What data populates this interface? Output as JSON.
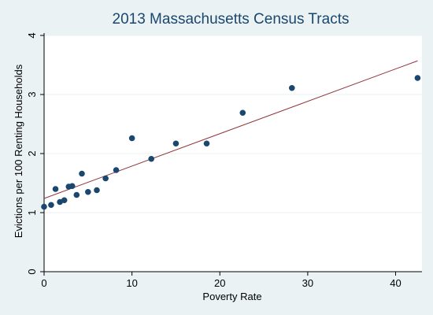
{
  "chart_data": {
    "type": "scatter",
    "title": "2013 Massachusetts Census Tracts",
    "xlabel": "Poverty Rate",
    "ylabel": "Evictions per 100 Renting Households",
    "xlim": [
      0,
      43
    ],
    "ylim": [
      0,
      4
    ],
    "x_ticks": [
      0,
      10,
      20,
      30,
      40
    ],
    "y_ticks": [
      0,
      1,
      2,
      3,
      4
    ],
    "x_tick_labels": [
      "0",
      "10",
      "20",
      "30",
      "40"
    ],
    "y_tick_labels": [
      "0",
      "1",
      "2",
      "3",
      "4"
    ],
    "grid": "horizontal",
    "colors": {
      "background": "#eaf2f3",
      "plot_area": "#ffffff",
      "marker": "#1a476f",
      "fit_line": "#90353b",
      "title": "#1a476f",
      "grid": "#eaf2f3"
    },
    "series": [
      {
        "type": "scatter",
        "points": [
          {
            "x": 0.0,
            "y": 1.1
          },
          {
            "x": 0.8,
            "y": 1.13
          },
          {
            "x": 1.3,
            "y": 1.4
          },
          {
            "x": 1.8,
            "y": 1.18
          },
          {
            "x": 2.3,
            "y": 1.21
          },
          {
            "x": 2.8,
            "y": 1.44
          },
          {
            "x": 3.2,
            "y": 1.45
          },
          {
            "x": 3.7,
            "y": 1.3
          },
          {
            "x": 4.3,
            "y": 1.66
          },
          {
            "x": 5.0,
            "y": 1.35
          },
          {
            "x": 6.0,
            "y": 1.38
          },
          {
            "x": 7.0,
            "y": 1.58
          },
          {
            "x": 8.2,
            "y": 1.72
          },
          {
            "x": 10.0,
            "y": 2.26
          },
          {
            "x": 12.2,
            "y": 1.91
          },
          {
            "x": 15.0,
            "y": 2.17
          },
          {
            "x": 18.5,
            "y": 2.17
          },
          {
            "x": 22.6,
            "y": 2.69
          },
          {
            "x": 28.2,
            "y": 3.11
          },
          {
            "x": 42.5,
            "y": 3.28
          }
        ]
      },
      {
        "type": "line",
        "points": [
          {
            "x": 0.0,
            "y": 1.24
          },
          {
            "x": 42.5,
            "y": 3.57
          }
        ]
      }
    ]
  }
}
